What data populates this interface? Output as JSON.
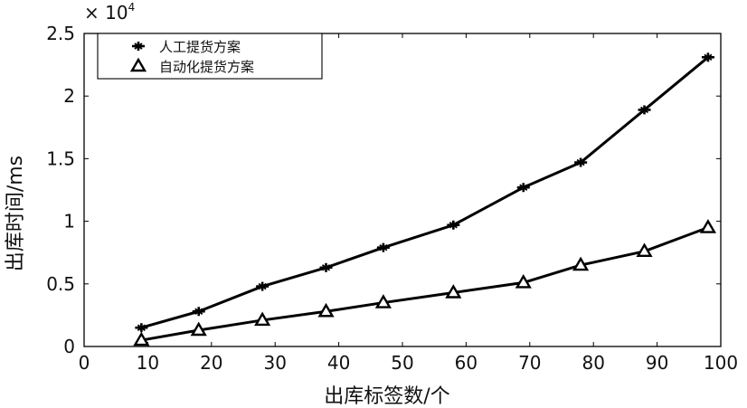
{
  "chart_data": {
    "type": "line",
    "xlabel": "出库标签数/个",
    "ylabel": "出库时间/ms",
    "y_multiplier": "× 10",
    "y_multiplier_exp": "4",
    "xlim": [
      0,
      100
    ],
    "ylim": [
      0,
      2.5
    ],
    "x_ticks": [
      0,
      10,
      20,
      30,
      40,
      50,
      60,
      70,
      80,
      90,
      100
    ],
    "x_tick_labels": [
      "0",
      "10",
      "20",
      "30",
      "40",
      "50",
      "60",
      "70",
      "80",
      "90",
      "100"
    ],
    "y_ticks": [
      0,
      0.5,
      1,
      1.5,
      2,
      2.5
    ],
    "y_tick_labels": [
      "0",
      "0.5",
      "1",
      "1.5",
      "2",
      "2.5"
    ],
    "grid": false,
    "legend_position": "top-left",
    "series": [
      {
        "name": "人工提货方案",
        "marker": "cross",
        "x": [
          9,
          18,
          28,
          38,
          47,
          58,
          69,
          78,
          88,
          98
        ],
        "y": [
          0.15,
          0.28,
          0.48,
          0.63,
          0.79,
          0.97,
          1.27,
          1.47,
          1.89,
          2.31
        ]
      },
      {
        "name": "自动化提货方案",
        "marker": "triangle",
        "x": [
          9,
          18,
          28,
          38,
          47,
          58,
          69,
          78,
          88,
          98
        ],
        "y": [
          0.05,
          0.13,
          0.21,
          0.28,
          0.35,
          0.43,
          0.51,
          0.65,
          0.76,
          0.95
        ]
      }
    ]
  }
}
